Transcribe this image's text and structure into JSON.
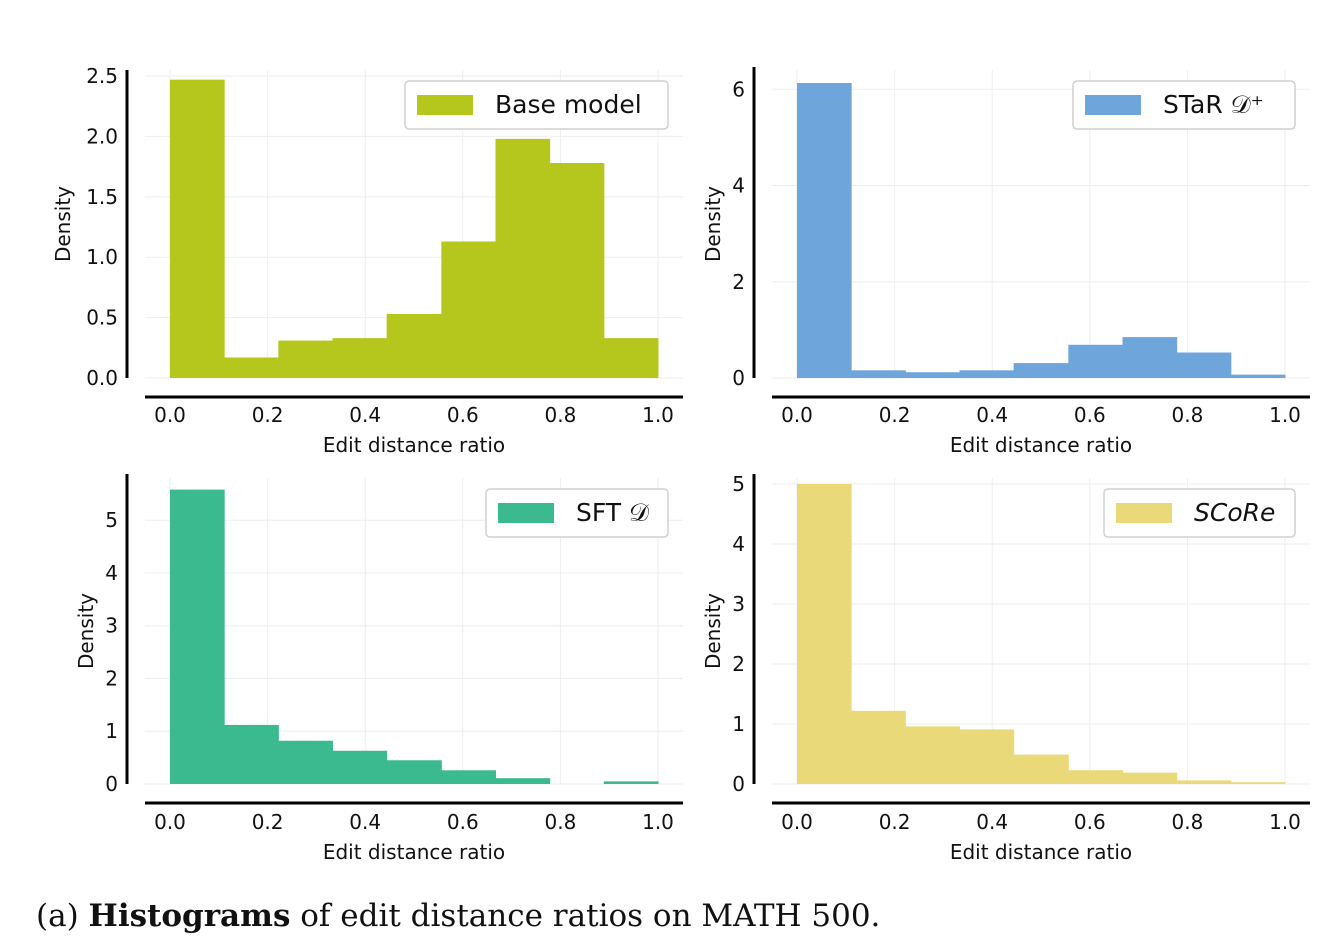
{
  "caption": {
    "label": "(a)",
    "bold": "Histograms",
    "rest": "of edit distance ratios on MATH 500."
  },
  "chart_data": [
    {
      "type": "bar",
      "xlabel": "Edit distance ratio",
      "ylabel": "Density",
      "xlim": [
        0.0,
        1.0
      ],
      "ylim": [
        0,
        2.55
      ],
      "xticks": [
        "0.0",
        "0.2",
        "0.4",
        "0.6",
        "0.8",
        "1.0"
      ],
      "yticks": [
        "0.0",
        "0.5",
        "1.0",
        "1.5",
        "2.0",
        "2.5"
      ],
      "bin_edges": [
        0.0,
        0.111,
        0.222,
        0.333,
        0.444,
        0.556,
        0.667,
        0.778,
        0.889,
        1.0
      ],
      "series": [
        {
          "name": "Base model",
          "values": [
            2.47,
            0.17,
            0.31,
            0.33,
            0.53,
            1.13,
            1.98,
            1.78,
            0.33
          ]
        }
      ],
      "color": "#b5c71c",
      "legend_italic": false,
      "legend_position": "top-right",
      "grid": true
    },
    {
      "type": "bar",
      "xlabel": "Edit distance ratio",
      "ylabel": "Density",
      "xlim": [
        0.0,
        1.0
      ],
      "ylim": [
        0,
        6.4
      ],
      "xticks": [
        "0.0",
        "0.2",
        "0.4",
        "0.6",
        "0.8",
        "1.0"
      ],
      "yticks": [
        "0",
        "2",
        "4",
        "6"
      ],
      "bin_edges": [
        0.0,
        0.111,
        0.222,
        0.333,
        0.444,
        0.556,
        0.667,
        0.778,
        0.889,
        1.0
      ],
      "series": [
        {
          "name": "STaR 𝒟⁺",
          "values": [
            6.13,
            0.16,
            0.12,
            0.16,
            0.31,
            0.69,
            0.85,
            0.53,
            0.07
          ]
        }
      ],
      "color": "#6ea6dc",
      "legend_italic": false,
      "legend_position": "top-right",
      "grid": true
    },
    {
      "type": "bar",
      "xlabel": "Edit distance ratio",
      "ylabel": "Density",
      "xlim": [
        0.0,
        1.0
      ],
      "ylim": [
        0,
        5.8
      ],
      "xticks": [
        "0.0",
        "0.2",
        "0.4",
        "0.6",
        "0.8",
        "1.0"
      ],
      "yticks": [
        "0",
        "1",
        "2",
        "3",
        "4",
        "5"
      ],
      "bin_edges": [
        0.0,
        0.111,
        0.222,
        0.333,
        0.444,
        0.556,
        0.667,
        0.778,
        0.889,
        1.0
      ],
      "series": [
        {
          "name": "SFT 𝒟",
          "values": [
            5.58,
            1.12,
            0.82,
            0.63,
            0.45,
            0.26,
            0.11,
            0.0,
            0.05
          ]
        }
      ],
      "color": "#3bb98f",
      "legend_italic": false,
      "legend_position": "top-right",
      "grid": true
    },
    {
      "type": "bar",
      "xlabel": "Edit distance ratio",
      "ylabel": "Density",
      "xlim": [
        0.0,
        1.0
      ],
      "ylim": [
        0,
        5.1
      ],
      "xticks": [
        "0.0",
        "0.2",
        "0.4",
        "0.6",
        "0.8",
        "1.0"
      ],
      "yticks": [
        "0",
        "1",
        "2",
        "3",
        "4",
        "5"
      ],
      "bin_edges": [
        0.0,
        0.111,
        0.222,
        0.333,
        0.444,
        0.556,
        0.667,
        0.778,
        0.889,
        1.0
      ],
      "series": [
        {
          "name": "SCoRe",
          "values": [
            5.0,
            1.22,
            0.96,
            0.91,
            0.49,
            0.23,
            0.19,
            0.06,
            0.03
          ]
        }
      ],
      "color": "#ead979",
      "legend_italic": true,
      "legend_position": "top-right",
      "grid": true
    }
  ]
}
